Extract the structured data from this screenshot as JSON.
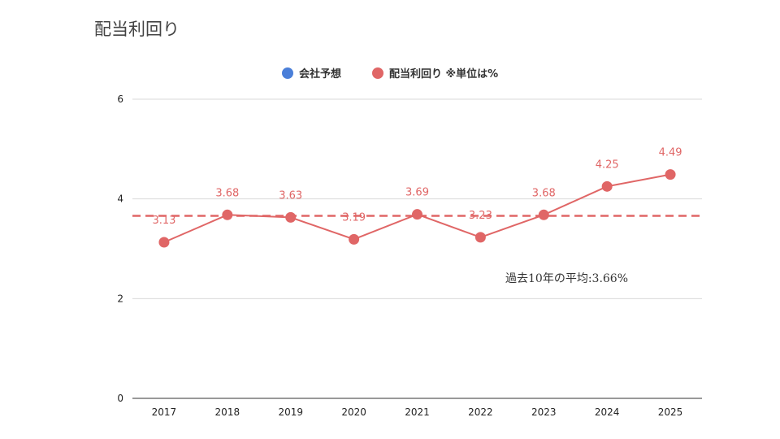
{
  "page": {
    "title": "配当利回り"
  },
  "colors": {
    "forecast": "#4a7fd9",
    "actual": "#e06666",
    "grid": "#d9d9d9",
    "axis": "#333333"
  },
  "chart_data": {
    "type": "line",
    "title": "",
    "xlabel": "",
    "ylabel": "",
    "categories": [
      "2017",
      "2018",
      "2019",
      "2020",
      "2021",
      "2022",
      "2023",
      "2024",
      "2025"
    ],
    "ylim": [
      0,
      6
    ],
    "yticks": [
      0,
      2,
      4,
      6
    ],
    "grid": true,
    "legend_position": "top",
    "legend": [
      {
        "name": "会社予想",
        "color": "#4a7fd9"
      },
      {
        "name": "配当利回り ※単位は%",
        "color": "#e06666"
      }
    ],
    "series": [
      {
        "name": "配当利回り ※単位は%",
        "values": [
          3.13,
          3.68,
          3.63,
          3.19,
          3.69,
          3.23,
          3.68,
          4.25,
          4.49
        ],
        "labels": [
          "3.13",
          "3.68",
          "3.63",
          "3.19",
          "3.69",
          "3.23",
          "3.68",
          "4.25",
          "4.49"
        ]
      }
    ],
    "average_line": {
      "value": 3.66,
      "label": "過去10年の平均:3.66%"
    }
  }
}
